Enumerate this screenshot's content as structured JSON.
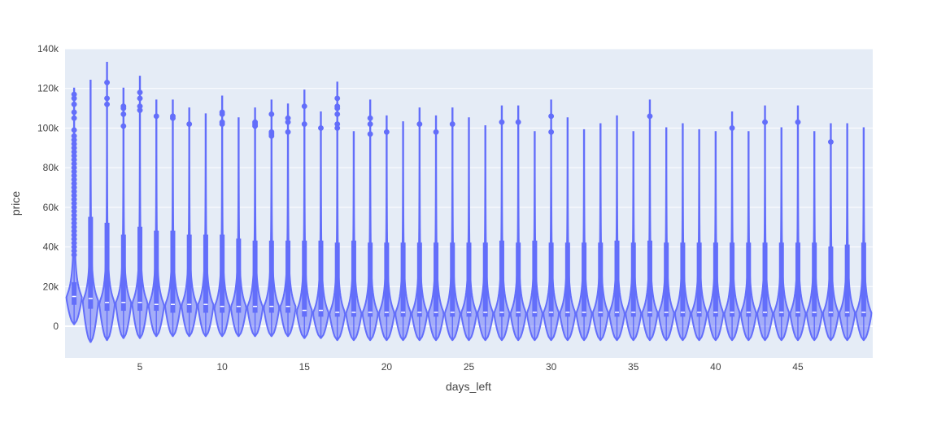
{
  "chart_data": {
    "type": "violin",
    "xlabel": "days_left",
    "ylabel": "price",
    "x_tick_labels": [
      "5",
      "10",
      "15",
      "20",
      "25",
      "30",
      "35",
      "40",
      "45"
    ],
    "x_ticks": [
      5,
      10,
      15,
      20,
      25,
      30,
      35,
      40,
      45
    ],
    "y_tick_labels": [
      "0",
      "20k",
      "40k",
      "60k",
      "80k",
      "100k",
      "120k",
      "140k"
    ],
    "y_ticks": [
      0,
      20000,
      40000,
      60000,
      80000,
      100000,
      120000,
      140000
    ],
    "xlim": [
      0.45,
      49.55
    ],
    "ylim": [
      -16000,
      140000
    ],
    "grid": true,
    "colors": {
      "plot_bg": "#e5ecf6",
      "grid": "#ffffff",
      "series": "#636efa"
    },
    "series": [
      {
        "x": 1,
        "upper_fence": 120000,
        "q3": 22000,
        "median": 15000,
        "q1": 11000,
        "lower": 1000,
        "max_density_price": 14000,
        "outliers": [
          117000,
          115000,
          112000,
          108000,
          105000,
          99000,
          96000,
          94000,
          92000,
          90000,
          88000,
          86000,
          84000,
          82000,
          80000,
          78000,
          76000,
          74000,
          72000,
          70000,
          68000,
          66000,
          64000,
          62000,
          60000,
          58000,
          56000,
          54000,
          52000,
          50000,
          48000,
          46000,
          44000,
          42000,
          40000,
          38000,
          36000
        ]
      },
      {
        "x": 2,
        "upper_fence": 124000,
        "q3": 55000,
        "median": 14000,
        "q1": 9000,
        "lower": -8000,
        "max_density_price": 12000,
        "outliers": []
      },
      {
        "x": 3,
        "upper_fence": 133000,
        "q3": 52000,
        "median": 12000,
        "q1": 8000,
        "lower": -7000,
        "max_density_price": 11000,
        "outliers": [
          123000,
          115000,
          112000
        ]
      },
      {
        "x": 4,
        "upper_fence": 120000,
        "q3": 46000,
        "median": 12000,
        "q1": 8000,
        "lower": -6000,
        "max_density_price": 11000,
        "outliers": [
          111000,
          110000,
          107000,
          101000
        ]
      },
      {
        "x": 5,
        "upper_fence": 126000,
        "q3": 50000,
        "median": 12000,
        "q1": 8000,
        "lower": -6000,
        "max_density_price": 11000,
        "outliers": [
          118000,
          115000,
          111000,
          109000
        ]
      },
      {
        "x": 6,
        "upper_fence": 114000,
        "q3": 48000,
        "median": 11000,
        "q1": 8000,
        "lower": -5000,
        "max_density_price": 10000,
        "outliers": [
          106000
        ]
      },
      {
        "x": 7,
        "upper_fence": 114000,
        "q3": 48000,
        "median": 11000,
        "q1": 7000,
        "lower": -5000,
        "max_density_price": 10000,
        "outliers": [
          106000,
          105000
        ]
      },
      {
        "x": 8,
        "upper_fence": 110000,
        "q3": 46000,
        "median": 11000,
        "q1": 7000,
        "lower": -5000,
        "max_density_price": 10000,
        "outliers": [
          102000
        ]
      },
      {
        "x": 9,
        "upper_fence": 107000,
        "q3": 46000,
        "median": 11000,
        "q1": 7000,
        "lower": -5000,
        "max_density_price": 10000,
        "outliers": []
      },
      {
        "x": 10,
        "upper_fence": 116000,
        "q3": 46000,
        "median": 10000,
        "q1": 7000,
        "lower": -5000,
        "max_density_price": 9000,
        "outliers": [
          108000,
          107000,
          103000,
          102000
        ]
      },
      {
        "x": 11,
        "upper_fence": 105000,
        "q3": 44000,
        "median": 10000,
        "q1": 7000,
        "lower": -5000,
        "max_density_price": 9000,
        "outliers": []
      },
      {
        "x": 12,
        "upper_fence": 110000,
        "q3": 43000,
        "median": 10000,
        "q1": 7000,
        "lower": -5000,
        "max_density_price": 9000,
        "outliers": [
          103000,
          102000,
          101000
        ]
      },
      {
        "x": 13,
        "upper_fence": 114000,
        "q3": 43000,
        "median": 10000,
        "q1": 7000,
        "lower": -5000,
        "max_density_price": 9000,
        "outliers": [
          107000,
          98000,
          97000,
          96000
        ]
      },
      {
        "x": 14,
        "upper_fence": 112000,
        "q3": 43000,
        "median": 10000,
        "q1": 7000,
        "lower": -5000,
        "max_density_price": 9000,
        "outliers": [
          105000,
          103000,
          98000
        ]
      },
      {
        "x": 15,
        "upper_fence": 119000,
        "q3": 43000,
        "median": 8000,
        "q1": 5000,
        "lower": -6000,
        "max_density_price": 7000,
        "outliers": [
          111000,
          102000
        ]
      },
      {
        "x": 16,
        "upper_fence": 108000,
        "q3": 43000,
        "median": 8000,
        "q1": 5000,
        "lower": -6000,
        "max_density_price": 6000,
        "outliers": [
          100000
        ]
      },
      {
        "x": 17,
        "upper_fence": 123000,
        "q3": 42000,
        "median": 7000,
        "q1": 5000,
        "lower": -7000,
        "max_density_price": 6000,
        "outliers": [
          115000,
          111000,
          110000,
          107000,
          102000,
          100000
        ]
      },
      {
        "x": 18,
        "upper_fence": 98000,
        "q3": 43000,
        "median": 7000,
        "q1": 5000,
        "lower": -7000,
        "max_density_price": 6000,
        "outliers": []
      },
      {
        "x": 19,
        "upper_fence": 114000,
        "q3": 42000,
        "median": 7000,
        "q1": 5000,
        "lower": -7000,
        "max_density_price": 6000,
        "outliers": [
          105000,
          102000,
          97000
        ]
      },
      {
        "x": 20,
        "upper_fence": 106000,
        "q3": 42000,
        "median": 7000,
        "q1": 5000,
        "lower": -7000,
        "max_density_price": 6000,
        "outliers": [
          98000
        ]
      },
      {
        "x": 21,
        "upper_fence": 103000,
        "q3": 42000,
        "median": 7000,
        "q1": 5000,
        "lower": -7000,
        "max_density_price": 6000,
        "outliers": []
      },
      {
        "x": 22,
        "upper_fence": 110000,
        "q3": 42000,
        "median": 7000,
        "q1": 5000,
        "lower": -7000,
        "max_density_price": 6000,
        "outliers": [
          102000
        ]
      },
      {
        "x": 23,
        "upper_fence": 106000,
        "q3": 42000,
        "median": 7000,
        "q1": 5000,
        "lower": -7000,
        "max_density_price": 6000,
        "outliers": [
          98000
        ]
      },
      {
        "x": 24,
        "upper_fence": 110000,
        "q3": 42000,
        "median": 7000,
        "q1": 5000,
        "lower": -7000,
        "max_density_price": 6000,
        "outliers": [
          102000
        ]
      },
      {
        "x": 25,
        "upper_fence": 105000,
        "q3": 42000,
        "median": 7000,
        "q1": 5000,
        "lower": -7000,
        "max_density_price": 6000,
        "outliers": []
      },
      {
        "x": 26,
        "upper_fence": 101000,
        "q3": 42000,
        "median": 7000,
        "q1": 5000,
        "lower": -7000,
        "max_density_price": 6000,
        "outliers": []
      },
      {
        "x": 27,
        "upper_fence": 111000,
        "q3": 43000,
        "median": 7000,
        "q1": 5000,
        "lower": -7000,
        "max_density_price": 6000,
        "outliers": [
          103000
        ]
      },
      {
        "x": 28,
        "upper_fence": 111000,
        "q3": 42000,
        "median": 7000,
        "q1": 5000,
        "lower": -7000,
        "max_density_price": 6000,
        "outliers": [
          103000
        ]
      },
      {
        "x": 29,
        "upper_fence": 98000,
        "q3": 43000,
        "median": 7000,
        "q1": 5000,
        "lower": -7000,
        "max_density_price": 6000,
        "outliers": []
      },
      {
        "x": 30,
        "upper_fence": 114000,
        "q3": 42000,
        "median": 7000,
        "q1": 5000,
        "lower": -7000,
        "max_density_price": 6000,
        "outliers": [
          106000,
          98000
        ]
      },
      {
        "x": 31,
        "upper_fence": 105000,
        "q3": 42000,
        "median": 7000,
        "q1": 5000,
        "lower": -7000,
        "max_density_price": 6000,
        "outliers": []
      },
      {
        "x": 32,
        "upper_fence": 99000,
        "q3": 42000,
        "median": 7000,
        "q1": 5000,
        "lower": -7000,
        "max_density_price": 6000,
        "outliers": []
      },
      {
        "x": 33,
        "upper_fence": 102000,
        "q3": 42000,
        "median": 7000,
        "q1": 5000,
        "lower": -7000,
        "max_density_price": 6000,
        "outliers": []
      },
      {
        "x": 34,
        "upper_fence": 106000,
        "q3": 43000,
        "median": 7000,
        "q1": 5000,
        "lower": -7000,
        "max_density_price": 6000,
        "outliers": []
      },
      {
        "x": 35,
        "upper_fence": 98000,
        "q3": 42000,
        "median": 7000,
        "q1": 5000,
        "lower": -7000,
        "max_density_price": 6000,
        "outliers": []
      },
      {
        "x": 36,
        "upper_fence": 114000,
        "q3": 43000,
        "median": 7000,
        "q1": 5000,
        "lower": -7000,
        "max_density_price": 6000,
        "outliers": [
          106000
        ]
      },
      {
        "x": 37,
        "upper_fence": 100000,
        "q3": 42000,
        "median": 7000,
        "q1": 5000,
        "lower": -7000,
        "max_density_price": 6000,
        "outliers": []
      },
      {
        "x": 38,
        "upper_fence": 102000,
        "q3": 42000,
        "median": 7000,
        "q1": 5000,
        "lower": -7000,
        "max_density_price": 6000,
        "outliers": []
      },
      {
        "x": 39,
        "upper_fence": 99000,
        "q3": 42000,
        "median": 7000,
        "q1": 5000,
        "lower": -7000,
        "max_density_price": 6000,
        "outliers": []
      },
      {
        "x": 40,
        "upper_fence": 98000,
        "q3": 42000,
        "median": 7000,
        "q1": 5000,
        "lower": -7000,
        "max_density_price": 6000,
        "outliers": []
      },
      {
        "x": 41,
        "upper_fence": 108000,
        "q3": 42000,
        "median": 7000,
        "q1": 5000,
        "lower": -7000,
        "max_density_price": 6000,
        "outliers": [
          100000
        ]
      },
      {
        "x": 42,
        "upper_fence": 98000,
        "q3": 42000,
        "median": 7000,
        "q1": 5000,
        "lower": -7000,
        "max_density_price": 6000,
        "outliers": []
      },
      {
        "x": 43,
        "upper_fence": 111000,
        "q3": 42000,
        "median": 7000,
        "q1": 5000,
        "lower": -7000,
        "max_density_price": 6000,
        "outliers": [
          103000
        ]
      },
      {
        "x": 44,
        "upper_fence": 100000,
        "q3": 42000,
        "median": 7000,
        "q1": 5000,
        "lower": -7000,
        "max_density_price": 6000,
        "outliers": []
      },
      {
        "x": 45,
        "upper_fence": 111000,
        "q3": 42000,
        "median": 7000,
        "q1": 5000,
        "lower": -7000,
        "max_density_price": 6000,
        "outliers": [
          103000
        ]
      },
      {
        "x": 46,
        "upper_fence": 98000,
        "q3": 42000,
        "median": 7000,
        "q1": 5000,
        "lower": -7000,
        "max_density_price": 6000,
        "outliers": []
      },
      {
        "x": 47,
        "upper_fence": 102000,
        "q3": 40000,
        "median": 7000,
        "q1": 5000,
        "lower": -7000,
        "max_density_price": 6000,
        "outliers": [
          93000
        ]
      },
      {
        "x": 48,
        "upper_fence": 102000,
        "q3": 41000,
        "median": 7000,
        "q1": 5000,
        "lower": -7000,
        "max_density_price": 6000,
        "outliers": []
      },
      {
        "x": 49,
        "upper_fence": 100000,
        "q3": 42000,
        "median": 7000,
        "q1": 5000,
        "lower": -7000,
        "max_density_price": 6000,
        "outliers": []
      }
    ]
  }
}
